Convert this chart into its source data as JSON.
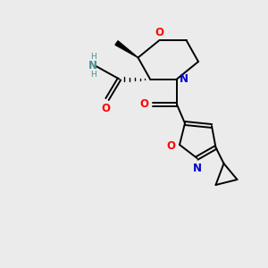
{
  "bg_color": "#ebebeb",
  "atom_colors": {
    "O": "#ff0000",
    "N": "#0000cd",
    "C": "#000000",
    "H": "#4a9090"
  },
  "bond_color": "#000000",
  "font_size_atom": 8.5,
  "font_size_small": 6.5,
  "line_width": 1.4
}
